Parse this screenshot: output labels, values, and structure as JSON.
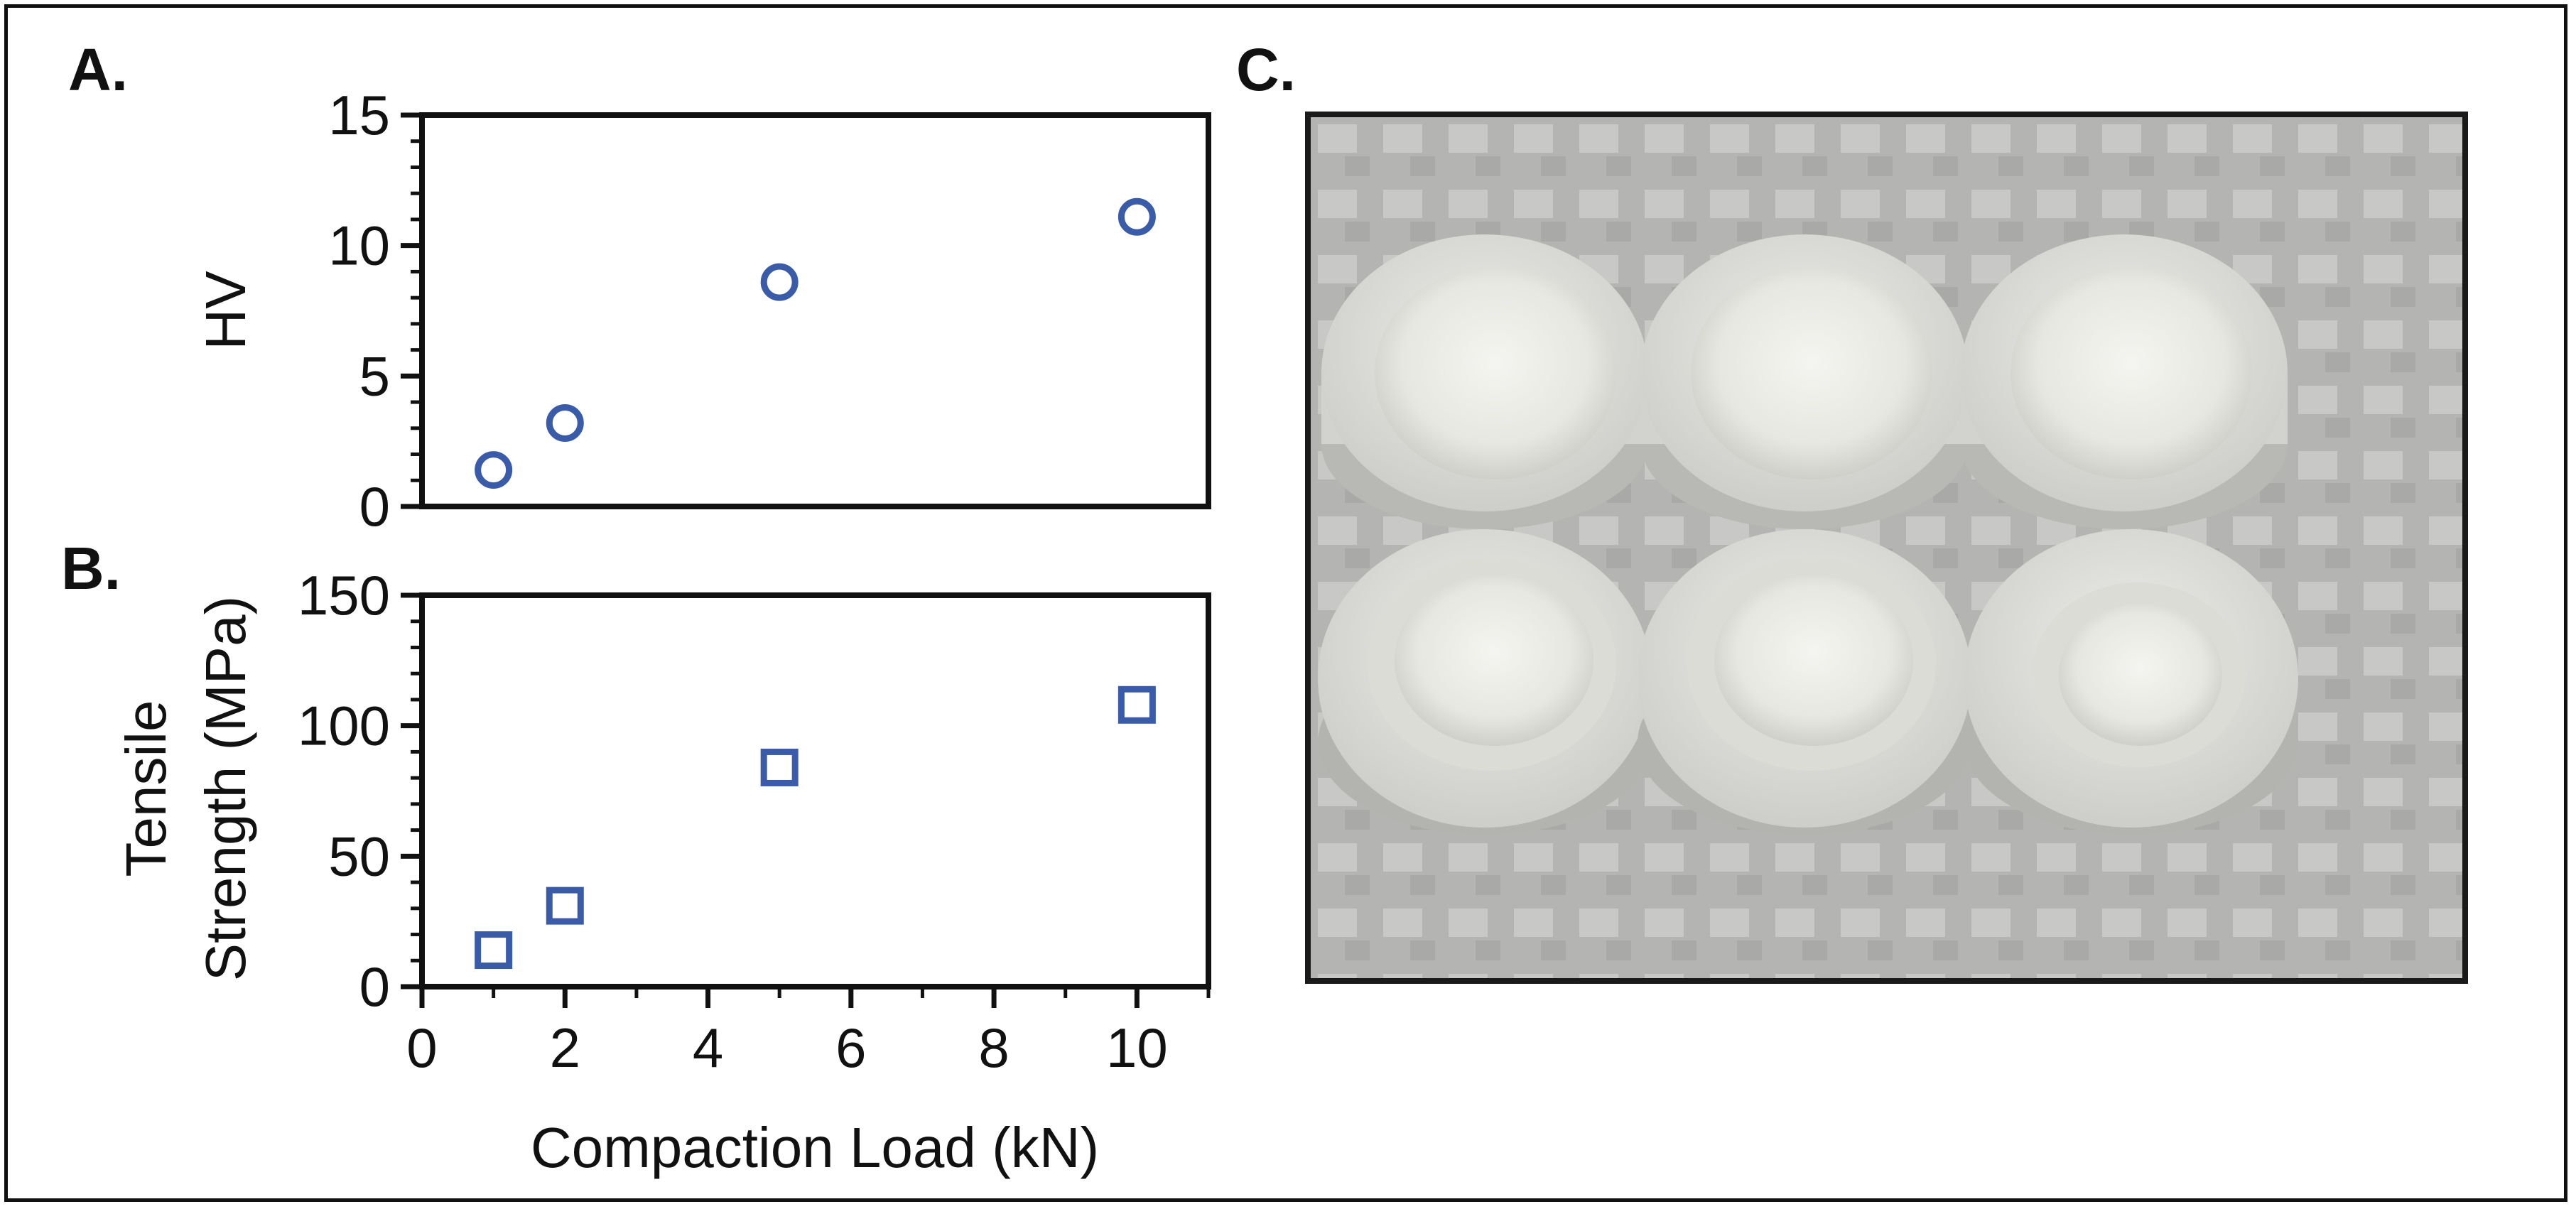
{
  "panels": {
    "a_label": "A.",
    "b_label": "B.",
    "c_label": "C."
  },
  "colors": {
    "marker": "#3a5ba8",
    "axis": "#111111"
  },
  "chart_data": [
    {
      "type": "scatter",
      "panel": "A.",
      "marker": "circle",
      "x": [
        1,
        2,
        5,
        10
      ],
      "y": [
        1.4,
        3.2,
        8.6,
        11.1
      ],
      "ylabel": "HV",
      "xlabel": "",
      "ylim": [
        0,
        15
      ],
      "xlim": [
        0,
        11
      ],
      "yticks": [
        "0",
        "5",
        "10",
        "15"
      ],
      "grid": false
    },
    {
      "type": "scatter",
      "panel": "B.",
      "marker": "square",
      "x": [
        1,
        2,
        5,
        10
      ],
      "y": [
        14,
        31,
        84,
        108
      ],
      "ylabel_line1": "Tensile",
      "ylabel_line2": "Strength (MPa)",
      "xlabel": "Compaction Load (kN)",
      "ylim": [
        0,
        150
      ],
      "xlim": [
        0,
        11
      ],
      "yticks": [
        "0",
        "50",
        "100",
        "150"
      ],
      "xticks": [
        "0",
        "2",
        "4",
        "6",
        "8",
        "10"
      ],
      "grid": false
    }
  ],
  "photo": {
    "description_icon": "photo-of-six-compacted-discs"
  }
}
